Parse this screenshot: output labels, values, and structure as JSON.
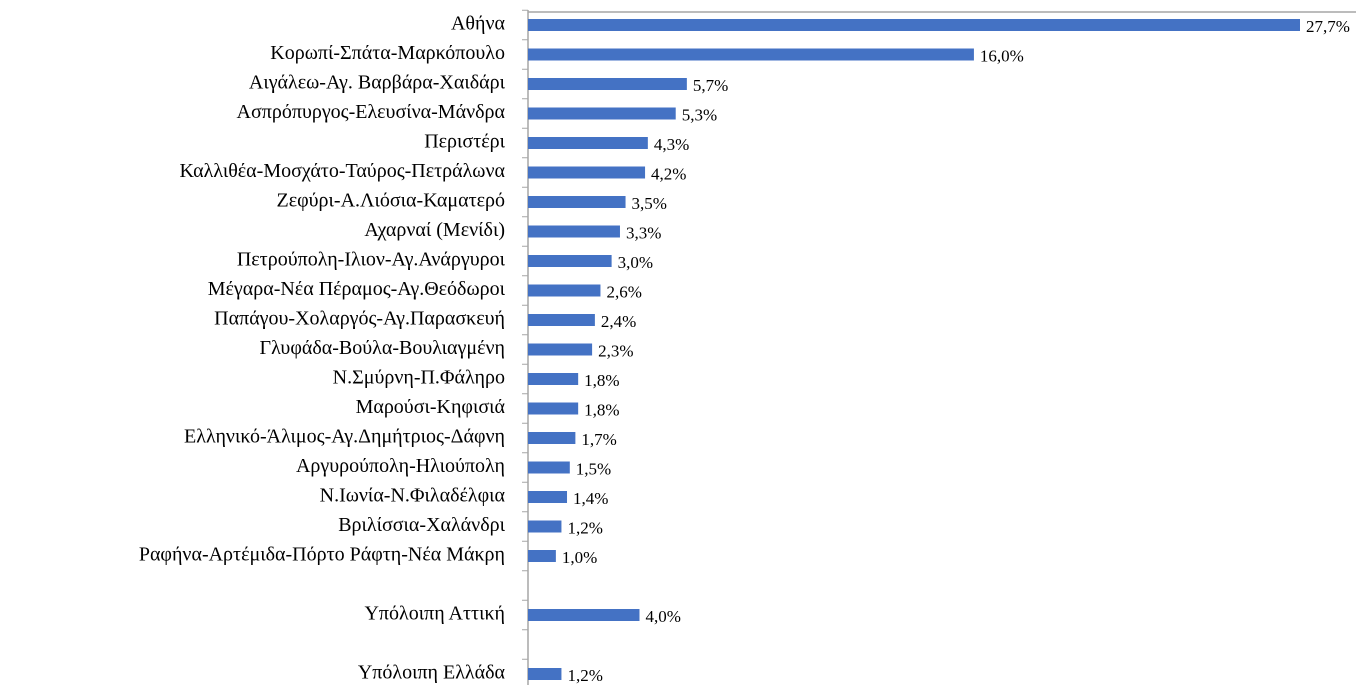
{
  "chart_data": {
    "type": "hbar",
    "categories": [
      "Αθήνα",
      "Κορωπί-Σπάτα-Μαρκόπουλο",
      "Αιγάλεω-Αγ. Βαρβάρα-Χαιδάρι",
      "Ασπρόπυργος-Ελευσίνα-Μάνδρα",
      "Περιστέρι",
      "Καλλιθέα-Μοσχάτο-Ταύρος-Πετράλωνα",
      "Ζεφύρι-Α.Λιόσια-Καματερό",
      "Αχαρναί (Μενίδι)",
      "Πετρούπολη-Ιλιον-Αγ.Ανάργυροι",
      "Μέγαρα-Νέα Πέραμος-Αγ.Θεόδωροι",
      "Παπάγου-Χολαργός-Αγ.Παρασκευή",
      "Γλυφάδα-Βούλα-Βουλιαγμένη",
      "Ν.Σμύρνη-Π.Φάληρο",
      "Μαρούσι-Κηφισιά",
      "Ελληνικό-Άλιμος-Αγ.Δημήτριος-Δάφνη",
      "Αργυρούπολη-Ηλιούπολη",
      "Ν.Ιωνία-Ν.Φιλαδέλφια",
      "Βριλίσσια-Χαλάνδρι",
      "Ραφήνα-Αρτέμιδα-Πόρτο Ράφτη-Νέα Μάκρη",
      null,
      "Υπόλοιπη Αττική",
      null,
      "Υπόλοιπη Ελλάδα"
    ],
    "values": [
      27.7,
      16.0,
      5.7,
      5.3,
      4.3,
      4.2,
      3.5,
      3.3,
      3.0,
      2.6,
      2.4,
      2.3,
      1.8,
      1.8,
      1.7,
      1.5,
      1.4,
      1.2,
      1.0,
      null,
      4.0,
      null,
      1.2
    ],
    "value_labels": [
      "27,7%",
      "16,0%",
      "5,7%",
      "5,3%",
      "4,3%",
      "4,2%",
      "3,5%",
      "3,3%",
      "3,0%",
      "2,6%",
      "2,4%",
      "2,3%",
      "1,8%",
      "1,8%",
      "1,7%",
      "1,5%",
      "1,4%",
      "1,2%",
      "1,0%",
      null,
      "4,0%",
      null,
      "1,2%"
    ],
    "color": "#4472c4"
  }
}
